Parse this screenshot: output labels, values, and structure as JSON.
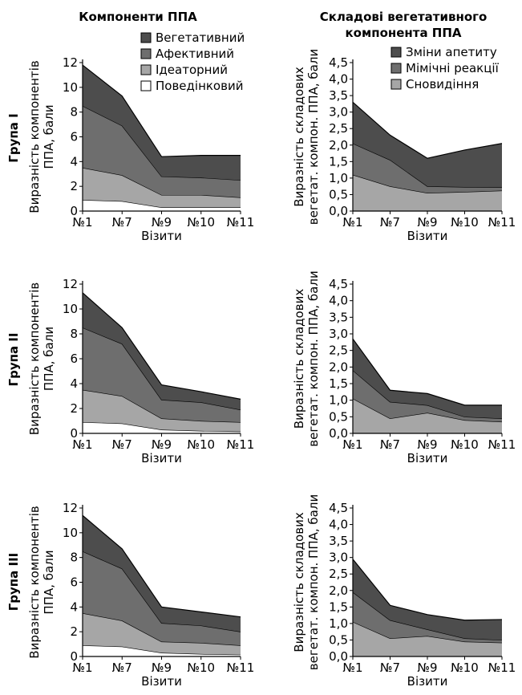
{
  "columns": {
    "left_title": "Компоненти ППА",
    "right_title_line1": "Складові вегетативного",
    "right_title_line2": "компонента ППА"
  },
  "rows": [
    "Група I",
    "Група II",
    "Група III"
  ],
  "colors": {
    "vegetative": "#4d4d4d",
    "affective": "#6e6e6e",
    "ideational": "#a6a6a6",
    "behavioral": "#ffffff",
    "appetite": "#4d4d4d",
    "mimic": "#6e6e6e",
    "dreams": "#a6a6a6"
  },
  "chart_data": [
    {
      "type": "area",
      "stacked": true,
      "group": "Група I",
      "panel": "left",
      "categories": [
        "№1",
        "№7",
        "№9",
        "№10",
        "№11"
      ],
      "xlabel": "Візити",
      "ylabel_line1": "Виразність компонентів",
      "ylabel_line2": "ППА, бали",
      "ylim": [
        0,
        12
      ],
      "yticks": [
        "0",
        "2",
        "4",
        "6",
        "8",
        "10",
        "12"
      ],
      "legend": "top-right",
      "series": [
        {
          "name": "Поведінковий",
          "color_key": "behavioral",
          "values": [
            0.9,
            0.8,
            0.3,
            0.3,
            0.3
          ]
        },
        {
          "name": "Ідеаторний",
          "color_key": "ideational",
          "values": [
            2.6,
            2.1,
            1.0,
            1.0,
            0.8
          ]
        },
        {
          "name": "Афективний",
          "color_key": "affective",
          "values": [
            5.0,
            4.0,
            1.5,
            1.4,
            1.4
          ]
        },
        {
          "name": "Вегетативний",
          "color_key": "vegetative",
          "values": [
            3.3,
            2.4,
            1.6,
            1.8,
            2.0
          ]
        }
      ]
    },
    {
      "type": "area",
      "stacked": true,
      "group": "Група I",
      "panel": "right",
      "categories": [
        "№1",
        "№7",
        "№9",
        "№10",
        "№11"
      ],
      "xlabel": "Візити",
      "ylabel_line1": "Виразність складових",
      "ylabel_line2": "вегетат. компон. ППА, бали",
      "ylim": [
        0,
        4.5
      ],
      "yticks": [
        "0,0",
        "0,5",
        "1,0",
        "1,5",
        "2,0",
        "2,5",
        "3,0",
        "3,5",
        "4,0",
        "4,5"
      ],
      "legend": "top-right",
      "series": [
        {
          "name": "Сновидіння",
          "color_key": "dreams",
          "values": [
            1.1,
            0.75,
            0.55,
            0.58,
            0.62
          ]
        },
        {
          "name": "Мімічні реакції",
          "color_key": "mimic",
          "values": [
            0.95,
            0.8,
            0.2,
            0.15,
            0.1
          ]
        },
        {
          "name": "Зміни апетиту",
          "color_key": "appetite",
          "values": [
            1.25,
            0.75,
            0.85,
            1.12,
            1.33
          ]
        }
      ]
    },
    {
      "type": "area",
      "stacked": true,
      "group": "Група II",
      "panel": "left",
      "categories": [
        "№1",
        "№7",
        "№9",
        "№10",
        "№11"
      ],
      "xlabel": "Візити",
      "ylabel_line1": "Виразність компонентів",
      "ylabel_line2": "ППА, бали",
      "ylim": [
        0,
        12
      ],
      "yticks": [
        "0",
        "2",
        "4",
        "6",
        "8",
        "10",
        "12"
      ],
      "series": [
        {
          "name": "Поведінковий",
          "color_key": "behavioral",
          "values": [
            0.9,
            0.8,
            0.3,
            0.2,
            0.15
          ]
        },
        {
          "name": "Ідеаторний",
          "color_key": "ideational",
          "values": [
            2.6,
            2.2,
            0.9,
            0.8,
            0.75
          ]
        },
        {
          "name": "Афективний",
          "color_key": "affective",
          "values": [
            5.0,
            4.2,
            1.5,
            1.5,
            1.0
          ]
        },
        {
          "name": "Вегетативний",
          "color_key": "vegetative",
          "values": [
            2.8,
            1.3,
            1.2,
            0.85,
            0.85
          ]
        }
      ]
    },
    {
      "type": "area",
      "stacked": true,
      "group": "Група II",
      "panel": "right",
      "categories": [
        "№1",
        "№7",
        "№9",
        "№10",
        "№11"
      ],
      "xlabel": "Візити",
      "ylabel_line1": "Виразність складових",
      "ylabel_line2": "вегетат. компон. ППА, бали",
      "ylim": [
        0,
        4.5
      ],
      "yticks": [
        "0,0",
        "0,5",
        "1,0",
        "1,5",
        "2,0",
        "2,5",
        "3,0",
        "3,5",
        "4,0",
        "4,5"
      ],
      "series": [
        {
          "name": "Сновидіння",
          "color_key": "dreams",
          "values": [
            1.05,
            0.45,
            0.62,
            0.4,
            0.35
          ]
        },
        {
          "name": "Мімічні реакції",
          "color_key": "mimic",
          "values": [
            0.85,
            0.5,
            0.23,
            0.1,
            0.1
          ]
        },
        {
          "name": "Зміни апетиту",
          "color_key": "appetite",
          "values": [
            0.95,
            0.35,
            0.35,
            0.35,
            0.4
          ]
        }
      ]
    },
    {
      "type": "area",
      "stacked": true,
      "group": "Група III",
      "panel": "left",
      "categories": [
        "№1",
        "№7",
        "№9",
        "№10",
        "№11"
      ],
      "xlabel": "Візити",
      "ylabel_line1": "Виразність компонентів",
      "ylabel_line2": "ППА, бали",
      "ylim": [
        0,
        12
      ],
      "yticks": [
        "0",
        "2",
        "4",
        "6",
        "8",
        "10",
        "12"
      ],
      "series": [
        {
          "name": "Поведінковий",
          "color_key": "behavioral",
          "values": [
            0.9,
            0.8,
            0.3,
            0.2,
            0.15
          ]
        },
        {
          "name": "Ідеаторний",
          "color_key": "ideational",
          "values": [
            2.6,
            2.1,
            0.9,
            0.9,
            0.75
          ]
        },
        {
          "name": "Афективний",
          "color_key": "affective",
          "values": [
            5.0,
            4.2,
            1.5,
            1.4,
            1.1
          ]
        },
        {
          "name": "Вегетативний",
          "color_key": "vegetative",
          "values": [
            2.9,
            1.6,
            1.3,
            1.1,
            1.2
          ]
        }
      ]
    },
    {
      "type": "area",
      "stacked": true,
      "group": "Група III",
      "panel": "right",
      "categories": [
        "№1",
        "№7",
        "№9",
        "№10",
        "№11"
      ],
      "xlabel": "Візити",
      "ylabel_line1": "Виразність складових",
      "ylabel_line2": "вегетат. компон. ППА, бали",
      "ylim": [
        0,
        4.5
      ],
      "yticks": [
        "0,0",
        "0,5",
        "1,0",
        "1,5",
        "2,0",
        "2,5",
        "3,0",
        "3,5",
        "4,0",
        "4,5"
      ],
      "series": [
        {
          "name": "Сновидіння",
          "color_key": "dreams",
          "values": [
            1.05,
            0.55,
            0.62,
            0.45,
            0.42
          ]
        },
        {
          "name": "Мімічні реакції",
          "color_key": "mimic",
          "values": [
            0.9,
            0.55,
            0.2,
            0.1,
            0.08
          ]
        },
        {
          "name": "Зміни апетиту",
          "color_key": "appetite",
          "values": [
            1.0,
            0.45,
            0.45,
            0.55,
            0.62
          ]
        }
      ]
    }
  ]
}
